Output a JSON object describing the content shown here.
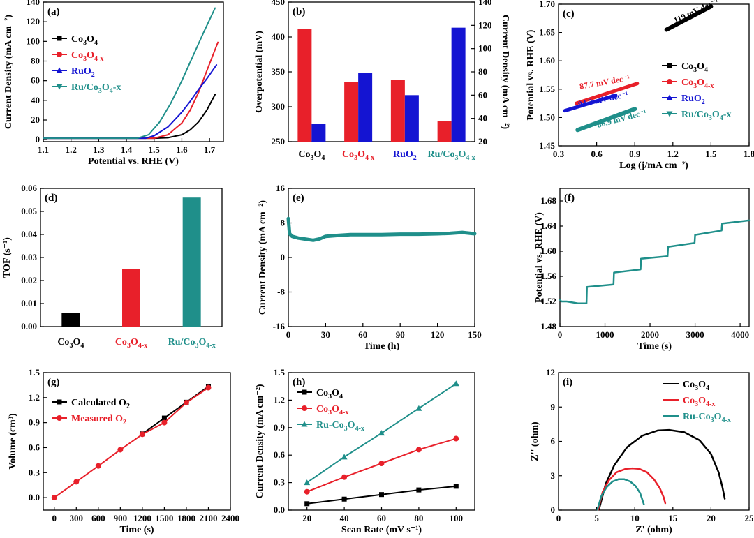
{
  "colors": {
    "black": "#000000",
    "red": "#e8202a",
    "blue": "#1414d2",
    "teal": "#1f8f8a"
  },
  "panels": [
    {
      "id": "a",
      "label": "(a)",
      "type": "line",
      "xlabel": "Potential vs. RHE (V)",
      "ylabel": "Current Density (mA cm⁻²)",
      "xlim": [
        1.1,
        1.75
      ],
      "ylim": [
        -2,
        140
      ],
      "xticks": [
        1.1,
        1.2,
        1.3,
        1.4,
        1.5,
        1.6,
        1.7
      ],
      "xticklabels": [
        "1.1",
        "1.2",
        "1.3",
        "1.4",
        "1.5",
        "1.6",
        "1.7"
      ],
      "yticks": [
        0,
        20,
        40,
        60,
        80,
        100,
        120,
        140
      ],
      "yticklabels": [
        "0",
        "20",
        "40",
        "60",
        "80",
        "100",
        "120",
        "140"
      ],
      "legend": "top-left",
      "series": [
        {
          "name": "Co3O4",
          "legend": [
            "Co",
            "3",
            "O",
            "4",
            ""
          ],
          "color": "black",
          "marker": "square",
          "x": [
            1.1,
            1.5,
            1.55,
            1.6,
            1.63,
            1.66,
            1.69,
            1.72
          ],
          "y": [
            1.5,
            1.5,
            2,
            5,
            10,
            18,
            30,
            46
          ]
        },
        {
          "name": "Co3O4-x",
          "legend": [
            "Co",
            "3",
            "O",
            "4-x",
            ""
          ],
          "color": "red",
          "marker": "circle",
          "x": [
            1.1,
            1.5,
            1.55,
            1.6,
            1.63,
            1.66,
            1.69,
            1.73
          ],
          "y": [
            1.5,
            1.5,
            5,
            17,
            30,
            48,
            70,
            99
          ]
        },
        {
          "name": "RuO2",
          "legend": [
            "RuO",
            "2",
            "",
            "",
            ""
          ],
          "color": "blue",
          "marker": "triangle",
          "x": [
            1.1,
            1.47,
            1.5,
            1.55,
            1.6,
            1.63,
            1.66,
            1.69,
            1.725
          ],
          "y": [
            1.5,
            1.5,
            4,
            13,
            28,
            39,
            51,
            62,
            76
          ]
        },
        {
          "name": "Ru/Co3O4-x",
          "legend": [
            "Ru/Co",
            "3",
            "O",
            "4",
            "-x"
          ],
          "color": "teal",
          "marker": "tridown",
          "x": [
            1.1,
            1.44,
            1.48,
            1.52,
            1.56,
            1.6,
            1.64,
            1.68,
            1.72
          ],
          "y": [
            1.5,
            1.5,
            5,
            18,
            37,
            60,
            85,
            110,
            134
          ]
        }
      ]
    },
    {
      "id": "b",
      "label": "(b)",
      "type": "bar",
      "ylabel": "Overpotential (mV)",
      "ylabel_right": "Current Density (mA cm⁻²)",
      "ylim": [
        250,
        450
      ],
      "ylim_right": [
        20,
        140
      ],
      "yticks": [
        250,
        300,
        350,
        400,
        450
      ],
      "yticklabels": [
        "250",
        "300",
        "350",
        "400",
        "450"
      ],
      "yticks_right": [
        20,
        40,
        60,
        80,
        100,
        120,
        140
      ],
      "yticklabels_right": [
        "20",
        "40",
        "60",
        "80",
        "100",
        "120",
        "140"
      ],
      "categories": [
        "Co3O4",
        "Co3O4-x",
        "RuO2",
        "Ru/Co3O4-x"
      ],
      "category_labels": [
        [
          "Co",
          "3",
          "O",
          "4",
          ""
        ],
        [
          "Co",
          "3",
          "O",
          "4-x",
          ""
        ],
        [
          "RuO",
          "2",
          "",
          "",
          ""
        ],
        [
          "Ru/Co",
          "3",
          "O",
          "4-x",
          ""
        ]
      ],
      "category_colors": [
        "black",
        "red",
        "blue",
        "teal"
      ],
      "series": [
        {
          "name": "Overpotential",
          "axis": "left",
          "color": "red",
          "values": [
            412,
            335,
            338,
            279
          ]
        },
        {
          "name": "Current Density",
          "axis": "right",
          "color": "blue",
          "values": [
            35,
            79,
            60,
            118
          ]
        }
      ]
    },
    {
      "id": "c",
      "label": "(c)",
      "type": "line",
      "xlabel": "Log (j/mA cm⁻²)",
      "ylabel": "Potential vs. RHE (V)",
      "xlim": [
        0.3,
        1.8
      ],
      "ylim": [
        1.45,
        1.7
      ],
      "xticks": [
        0.3,
        0.6,
        0.9,
        1.2,
        1.5,
        1.8
      ],
      "xticklabels": [
        "0.3",
        "0.6",
        "0.9",
        "1.2",
        "1.5",
        "1.8"
      ],
      "yticks": [
        1.45,
        1.5,
        1.55,
        1.6,
        1.65,
        1.7
      ],
      "yticklabels": [
        "1.45",
        "1.50",
        "1.55",
        "1.60",
        "1.65",
        "1.70"
      ],
      "legend": "right",
      "series": [
        {
          "name": "Co3O4",
          "legend": [
            "Co",
            "3",
            "O",
            "4",
            ""
          ],
          "color": "black",
          "marker": "square",
          "width": 6,
          "x": [
            1.15,
            1.5
          ],
          "y": [
            1.655,
            1.696
          ]
        },
        {
          "name": "Co3O4-x",
          "legend": [
            "Co",
            "3",
            "O",
            "4-x",
            ""
          ],
          "color": "red",
          "marker": "circle",
          "width": 5,
          "x": [
            0.44,
            0.92
          ],
          "y": [
            1.525,
            1.56
          ]
        },
        {
          "name": "RuO2",
          "legend": [
            "RuO",
            "2",
            "",
            "",
            ""
          ],
          "color": "blue",
          "marker": "triangle",
          "width": 5,
          "x": [
            0.35,
            0.75
          ],
          "y": [
            1.512,
            1.539
          ]
        },
        {
          "name": "Ru/Co3O4-x",
          "legend": [
            "Ru/Co",
            "3",
            "O",
            "4",
            "-x"
          ],
          "color": "teal",
          "marker": "tridown",
          "width": 6,
          "x": [
            0.45,
            0.9
          ],
          "y": [
            1.478,
            1.515
          ]
        }
      ],
      "annotations": [
        {
          "text": "119 mV dec⁻¹",
          "x": 1.22,
          "y": 1.666,
          "color": "black",
          "rot": -25
        },
        {
          "text": "87.7 mV dec⁻¹",
          "x": 0.47,
          "y": 1.55,
          "color": "red",
          "rot": -10
        },
        {
          "text": "94.3 mV dec⁻¹",
          "x": 0.46,
          "y": 1.518,
          "color": "blue",
          "rot": -12
        },
        {
          "text": "86.9 mV dec⁻¹",
          "x": 0.61,
          "y": 1.482,
          "color": "teal",
          "rot": -15
        }
      ]
    },
    {
      "id": "d",
      "label": "(d)",
      "type": "bar",
      "ylabel": "TOF (s⁻¹)",
      "ylim": [
        0,
        0.06
      ],
      "yticks": [
        0,
        0.01,
        0.02,
        0.03,
        0.04,
        0.05,
        0.06
      ],
      "yticklabels": [
        "0.00",
        "0.01",
        "0.02",
        "0.03",
        "0.04",
        "0.05",
        "0.06"
      ],
      "categories": [
        "Co3O4",
        "Co3O4-x",
        "Ru/Co3O4-x"
      ],
      "category_labels": [
        [
          "Co",
          "3",
          "O",
          "4",
          ""
        ],
        [
          "Co",
          "3",
          "O",
          "4-x",
          ""
        ],
        [
          "Ru/Co",
          "3",
          "O",
          "4-x",
          ""
        ]
      ],
      "category_colors": [
        "black",
        "red",
        "teal"
      ],
      "values": [
        0.006,
        0.025,
        0.056
      ]
    },
    {
      "id": "e",
      "label": "(e)",
      "type": "line",
      "xlabel": "Time (h)",
      "ylabel": "Current Density (mA cm⁻²)",
      "xlim": [
        0,
        150
      ],
      "ylim": [
        -16,
        16
      ],
      "xticks": [
        0,
        30,
        60,
        90,
        120,
        150
      ],
      "xticklabels": [
        "0",
        "30",
        "60",
        "90",
        "120",
        "150"
      ],
      "yticks": [
        -16,
        -8,
        0,
        8,
        16
      ],
      "yticklabels": [
        "-16",
        "-8",
        "0",
        "8",
        "16"
      ],
      "series": [
        {
          "name": "stability",
          "color": "teal",
          "width": 5,
          "x": [
            0,
            1,
            3,
            8,
            15,
            20,
            25,
            30,
            40,
            50,
            60,
            75,
            90,
            105,
            120,
            130,
            140,
            150
          ],
          "y": [
            9,
            5.5,
            4.9,
            4.5,
            4.2,
            4.0,
            4.3,
            4.9,
            5.1,
            5.3,
            5.3,
            5.3,
            5.4,
            5.4,
            5.5,
            5.6,
            5.8,
            5.5
          ]
        }
      ]
    },
    {
      "id": "f",
      "label": "(f)",
      "type": "line",
      "xlabel": "Time (s)",
      "ylabel": "Potential vs. RHE (V)",
      "xlim": [
        0,
        4200
      ],
      "ylim": [
        1.48,
        1.7
      ],
      "xticks": [
        0,
        1000,
        2000,
        3000,
        4000
      ],
      "xticklabels": [
        "0",
        "1000",
        "2000",
        "3000",
        "4000"
      ],
      "yticks": [
        1.48,
        1.52,
        1.56,
        1.6,
        1.64,
        1.68
      ],
      "yticklabels": [
        "1.48",
        "1.52",
        "1.56",
        "1.60",
        "1.64",
        "1.68"
      ],
      "series": [
        {
          "name": "multistep",
          "color": "teal",
          "width": 2.5,
          "x": [
            0,
            30,
            150,
            400,
            590,
            600,
            1190,
            1200,
            1790,
            1800,
            2390,
            2400,
            2990,
            3000,
            3590,
            3600,
            4200
          ],
          "y": [
            1.523,
            1.52,
            1.52,
            1.517,
            1.517,
            1.543,
            1.547,
            1.566,
            1.571,
            1.588,
            1.592,
            1.607,
            1.613,
            1.626,
            1.633,
            1.644,
            1.649
          ]
        }
      ]
    },
    {
      "id": "g",
      "label": "(g)",
      "type": "line",
      "xlabel": "Time (s)",
      "ylabel": "Volume (cm³)",
      "xlim": [
        -150,
        2400
      ],
      "ylim": [
        -0.15,
        1.5
      ],
      "xticks": [
        0,
        300,
        600,
        900,
        1200,
        1500,
        1800,
        2100,
        2400
      ],
      "xticklabels": [
        "0",
        "300",
        "600",
        "900",
        "1200",
        "1500",
        "1800",
        "2100",
        "2400"
      ],
      "yticks": [
        0,
        0.3,
        0.6,
        0.9,
        1.2,
        1.5
      ],
      "yticklabels": [
        "0.0",
        "0.3",
        "0.6",
        "0.9",
        "1.2",
        "1.5"
      ],
      "legend": "top-left",
      "series": [
        {
          "name": "Calculated O2",
          "legend": [
            "Calculated O",
            "2",
            "",
            "",
            ""
          ],
          "color": "black",
          "marker": "square",
          "x": [
            1200,
            1500,
            1800,
            2100
          ],
          "y": [
            0.765,
            0.955,
            1.145,
            1.335
          ]
        },
        {
          "name": "Measured O2",
          "legend": [
            "Measured O",
            "2",
            "",
            "",
            ""
          ],
          "color": "red",
          "marker": "circle",
          "x": [
            0,
            300,
            600,
            900,
            1200,
            1500,
            1800,
            2100
          ],
          "y": [
            0,
            0.19,
            0.38,
            0.575,
            0.76,
            0.9,
            1.14,
            1.32
          ]
        }
      ]
    },
    {
      "id": "h",
      "label": "(h)",
      "type": "line",
      "xlabel": "Scan Rate (mV s⁻¹)",
      "ylabel": "Current Density (mA cm⁻²)",
      "xlim": [
        10,
        110
      ],
      "ylim": [
        0,
        1.5
      ],
      "xticks": [
        20,
        40,
        60,
        80,
        100
      ],
      "xticklabels": [
        "20",
        "40",
        "60",
        "80",
        "100"
      ],
      "yticks": [
        0,
        0.3,
        0.6,
        0.9,
        1.2,
        1.5
      ],
      "yticklabels": [
        "0.0",
        "0.3",
        "0.6",
        "0.9",
        "1.2",
        "1.5"
      ],
      "legend": "top-left",
      "series": [
        {
          "name": "Co3O4",
          "legend": [
            "Co",
            "3",
            "O",
            "4",
            ""
          ],
          "color": "black",
          "marker": "square",
          "x": [
            20,
            40,
            60,
            80,
            100
          ],
          "y": [
            0.07,
            0.12,
            0.17,
            0.22,
            0.26
          ]
        },
        {
          "name": "Co3O4-x",
          "legend": [
            "Co",
            "3",
            "O",
            "4-x",
            ""
          ],
          "color": "red",
          "marker": "circle",
          "x": [
            20,
            40,
            60,
            80,
            100
          ],
          "y": [
            0.2,
            0.36,
            0.51,
            0.66,
            0.78
          ]
        },
        {
          "name": "Ru-Co3O4-x",
          "legend": [
            "Ru-Co",
            "3",
            "O",
            "4-x",
            ""
          ],
          "color": "teal",
          "marker": "triangle",
          "x": [
            20,
            40,
            60,
            80,
            100
          ],
          "y": [
            0.3,
            0.58,
            0.84,
            1.11,
            1.38
          ]
        }
      ]
    },
    {
      "id": "i",
      "label": "(i)",
      "type": "line",
      "xlabel": "Z' (ohm)",
      "ylabel": "Z'' (ohm)",
      "xlim": [
        0,
        25
      ],
      "ylim": [
        0,
        12
      ],
      "xticks": [
        0,
        5,
        10,
        15,
        20,
        25
      ],
      "xticklabels": [
        "0",
        "5",
        "10",
        "15",
        "20",
        "25"
      ],
      "yticks": [
        0,
        3,
        6,
        9,
        12
      ],
      "yticklabels": [
        "0",
        "3",
        "6",
        "9",
        "12"
      ],
      "legend": "top-right",
      "series": [
        {
          "name": "Co3O4",
          "legend": [
            "Co",
            "3",
            "O",
            "4",
            ""
          ],
          "color": "black",
          "width": 2.5,
          "x": [
            5.3,
            6.2,
            7.3,
            9.0,
            11.0,
            13.0,
            14.5,
            16.5,
            18.5,
            20.0,
            21.0,
            21.5,
            21.8
          ],
          "y": [
            0.05,
            2.3,
            3.9,
            5.5,
            6.5,
            6.95,
            7.0,
            6.8,
            6.1,
            4.9,
            3.3,
            2.0,
            1.0
          ]
        },
        {
          "name": "Co3O4-x",
          "legend": [
            "Co",
            "3",
            "O",
            "4-x",
            ""
          ],
          "color": "red",
          "width": 2.5,
          "x": [
            5.2,
            5.8,
            6.6,
            7.6,
            8.8,
            9.7,
            10.6,
            11.6,
            12.5,
            13.3,
            13.8,
            14.0
          ],
          "y": [
            0.05,
            1.6,
            2.6,
            3.3,
            3.6,
            3.65,
            3.6,
            3.3,
            2.7,
            1.9,
            1.1,
            0.6
          ]
        },
        {
          "name": "Ru-Co3O4-x",
          "legend": [
            "Ru-Co",
            "3",
            "O",
            "4-x",
            ""
          ],
          "color": "teal",
          "width": 2.5,
          "x": [
            5.1,
            5.6,
            6.3,
            7.1,
            7.9,
            8.6,
            9.4,
            10.1,
            10.7,
            11.0,
            11.2
          ],
          "y": [
            0.05,
            1.2,
            2.0,
            2.5,
            2.7,
            2.7,
            2.5,
            2.1,
            1.5,
            0.9,
            0.5
          ]
        }
      ]
    }
  ]
}
